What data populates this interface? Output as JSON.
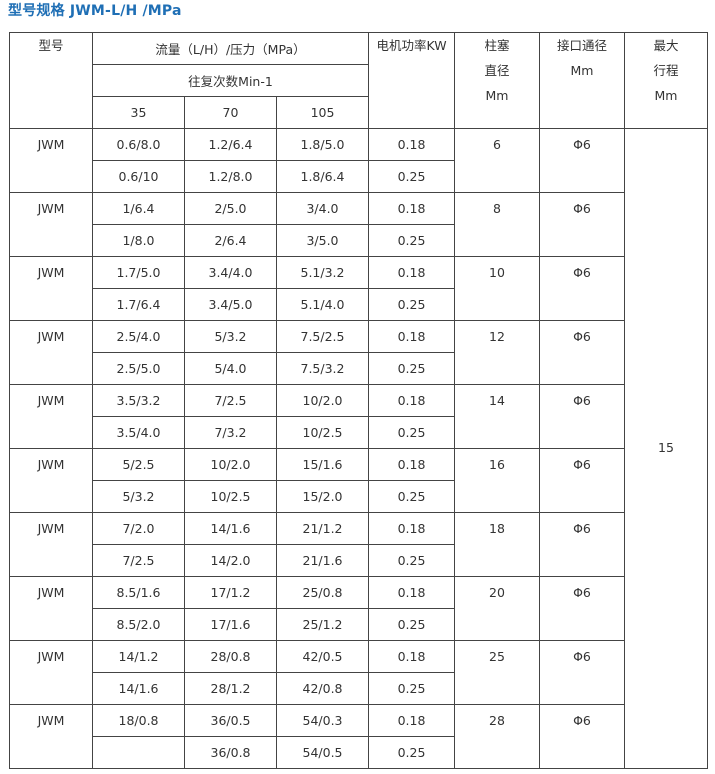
{
  "title": "型号规格 JWM-L/H /MPa",
  "header": {
    "model": "型号",
    "flow_pressure": "流量（L/H）/压力（MPa）",
    "reciprocation": "往复次数Min-1",
    "strokes": [
      "35",
      "70",
      "105"
    ],
    "power": "电机功率KW",
    "plunger": [
      "柱塞",
      "直径",
      "Mm"
    ],
    "port": [
      "接口通径",
      "Mm"
    ],
    "stroke_len": [
      "最大",
      "行程",
      "Mm"
    ]
  },
  "max_stroke": "15",
  "groups": [
    {
      "model": "JWM",
      "plunger": "6",
      "port": "Φ6",
      "rows": [
        {
          "c35": "0.6/8.0",
          "c70": "1.2/6.4",
          "c105": "1.8/5.0",
          "power": "0.18"
        },
        {
          "c35": "0.6/10",
          "c70": "1.2/8.0",
          "c105": "1.8/6.4",
          "power": "0.25"
        }
      ]
    },
    {
      "model": "JWM",
      "plunger": "8",
      "port": "Φ6",
      "rows": [
        {
          "c35": "1/6.4",
          "c70": "2/5.0",
          "c105": "3/4.0",
          "power": "0.18"
        },
        {
          "c35": "1/8.0",
          "c70": "2/6.4",
          "c105": "3/5.0",
          "power": "0.25"
        }
      ]
    },
    {
      "model": "JWM",
      "plunger": "10",
      "port": "Φ6",
      "rows": [
        {
          "c35": "1.7/5.0",
          "c70": "3.4/4.0",
          "c105": "5.1/3.2",
          "power": "0.18"
        },
        {
          "c35": "1.7/6.4",
          "c70": "3.4/5.0",
          "c105": "5.1/4.0",
          "power": "0.25"
        }
      ]
    },
    {
      "model": "JWM",
      "plunger": "12",
      "port": "Φ6",
      "rows": [
        {
          "c35": "2.5/4.0",
          "c70": "5/3.2",
          "c105": "7.5/2.5",
          "power": "0.18"
        },
        {
          "c35": "2.5/5.0",
          "c70": "5/4.0",
          "c105": "7.5/3.2",
          "power": "0.25"
        }
      ]
    },
    {
      "model": "JWM",
      "plunger": "14",
      "port": "Φ6",
      "rows": [
        {
          "c35": "3.5/3.2",
          "c70": "7/2.5",
          "c105": "10/2.0",
          "power": "0.18"
        },
        {
          "c35": "3.5/4.0",
          "c70": "7/3.2",
          "c105": "10/2.5",
          "power": "0.25"
        }
      ]
    },
    {
      "model": "JWM",
      "plunger": "16",
      "port": "Φ6",
      "rows": [
        {
          "c35": "5/2.5",
          "c70": "10/2.0",
          "c105": "15/1.6",
          "power": "0.18"
        },
        {
          "c35": "5/3.2",
          "c70": "10/2.5",
          "c105": "15/2.0",
          "power": "0.25"
        }
      ]
    },
    {
      "model": "JWM",
      "plunger": "18",
      "port": "Φ6",
      "rows": [
        {
          "c35": "7/2.0",
          "c70": "14/1.6",
          "c105": "21/1.2",
          "power": "0.18"
        },
        {
          "c35": "7/2.5",
          "c70": "14/2.0",
          "c105": "21/1.6",
          "power": "0.25"
        }
      ]
    },
    {
      "model": "JWM",
      "plunger": "20",
      "port": "Φ6",
      "rows": [
        {
          "c35": "8.5/1.6",
          "c70": "17/1.2",
          "c105": "25/0.8",
          "power": "0.18"
        },
        {
          "c35": "8.5/2.0",
          "c70": "17/1.6",
          "c105": "25/1.2",
          "power": "0.25"
        }
      ]
    },
    {
      "model": "JWM",
      "plunger": "25",
      "port": "Φ6",
      "rows": [
        {
          "c35": "14/1.2",
          "c70": "28/0.8",
          "c105": "42/0.5",
          "power": "0.18"
        },
        {
          "c35": "14/1.6",
          "c70": "28/1.2",
          "c105": "42/0.8",
          "power": "0.25"
        }
      ]
    },
    {
      "model": "JWM",
      "plunger": "28",
      "port": "Φ6",
      "rows": [
        {
          "c35": "18/0.8",
          "c70": "36/0.5",
          "c105": "54/0.3",
          "power": "0.18"
        },
        {
          "c35": "",
          "c70": "36/0.8",
          "c105": "54/0.5",
          "power": "0.25"
        }
      ]
    }
  ]
}
